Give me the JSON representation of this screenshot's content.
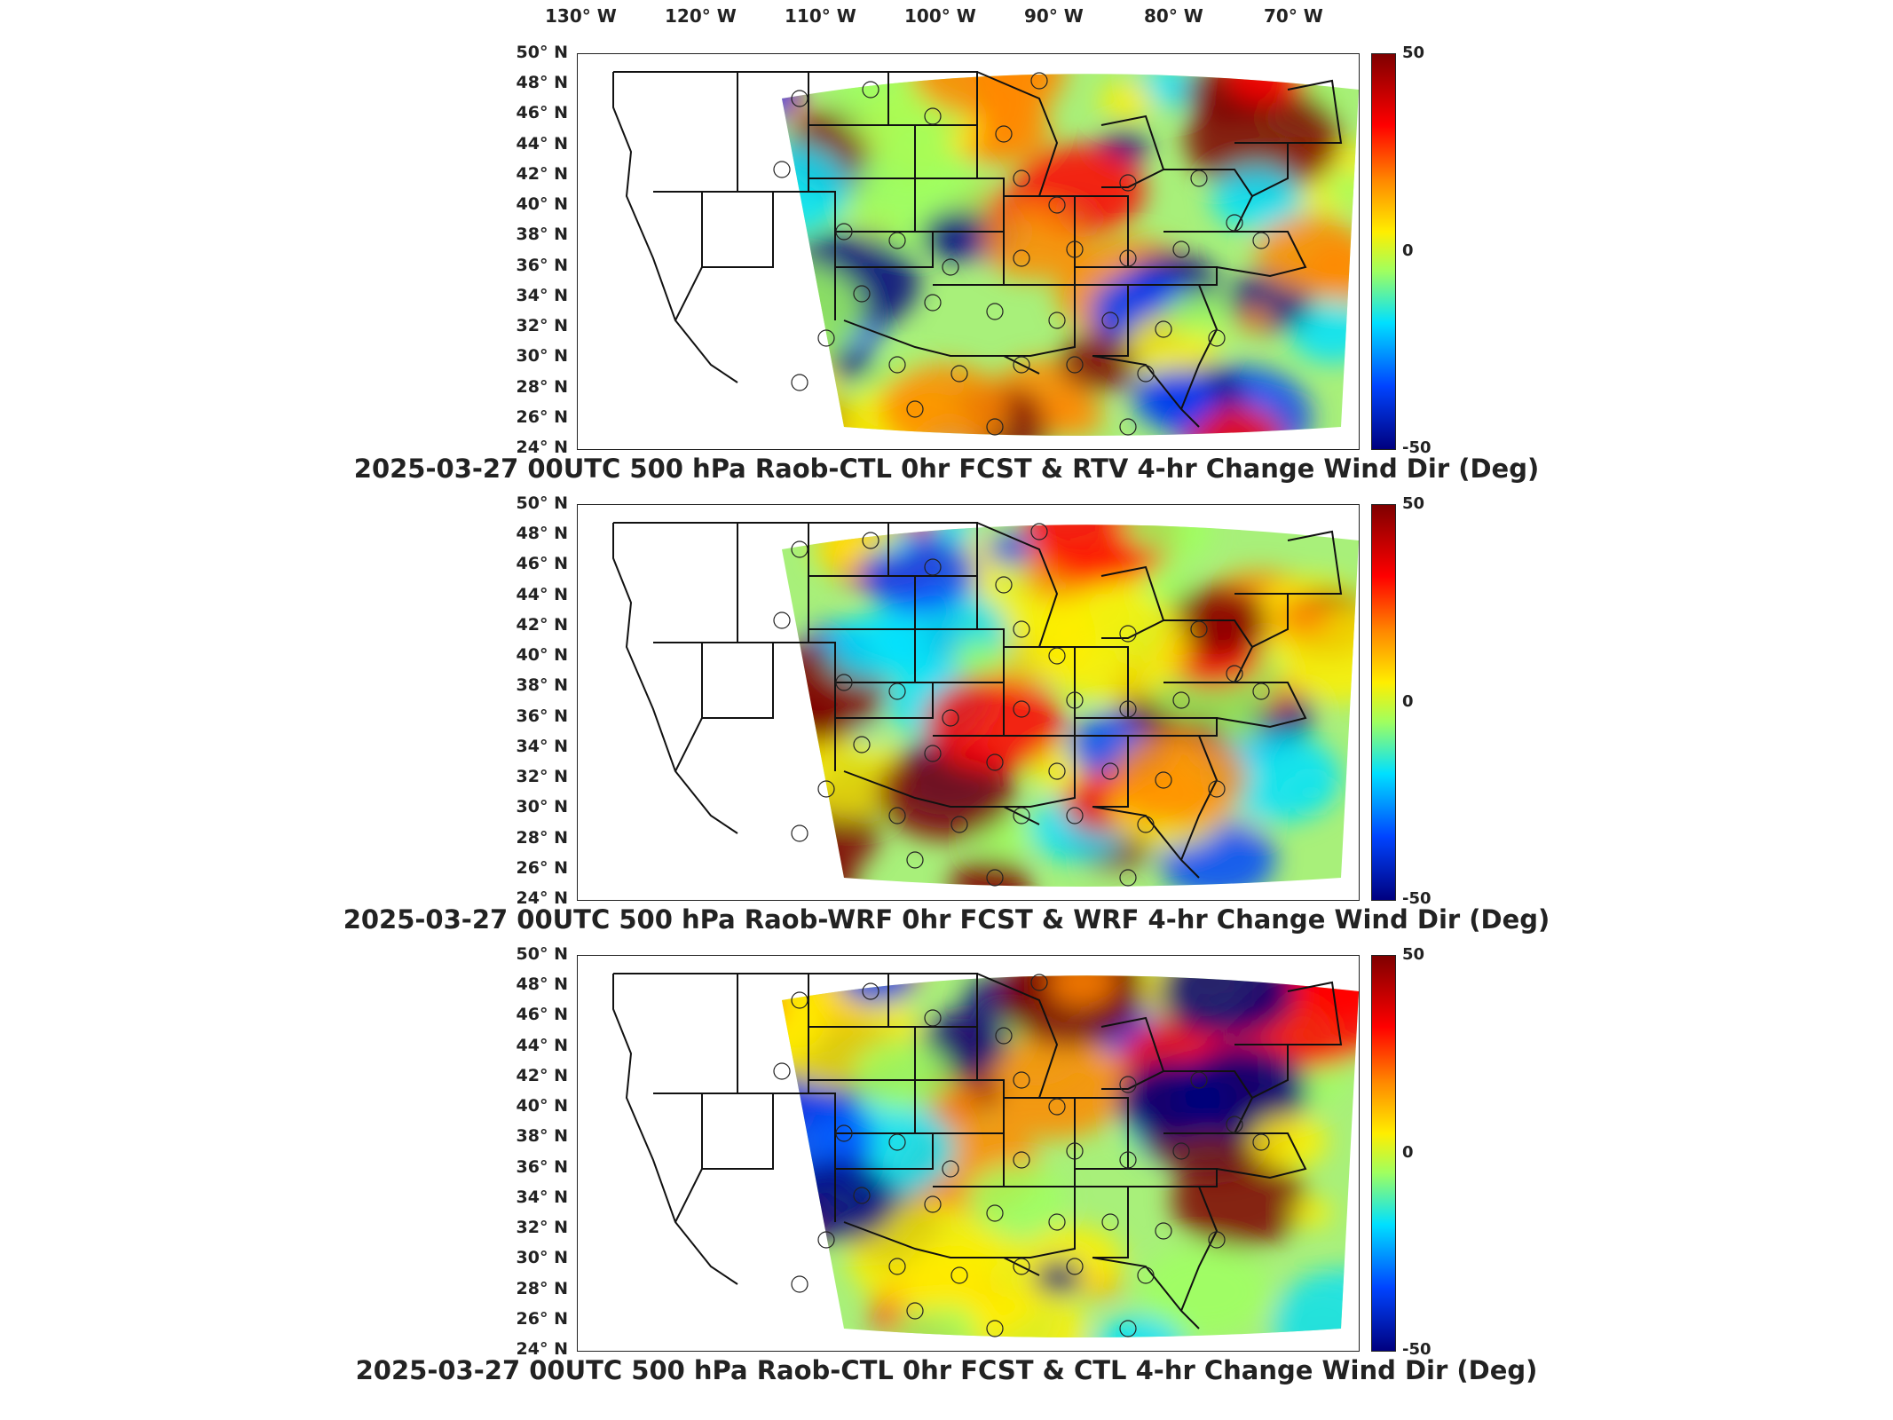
{
  "longitude_labels": [
    "130° W",
    "120° W",
    "110° W",
    "100° W",
    "90° W",
    "80° W",
    "70° W"
  ],
  "latitude_labels": [
    "50° N",
    "48° N",
    "46° N",
    "44° N",
    "42° N",
    "40° N",
    "38° N",
    "36° N",
    "34° N",
    "32° N",
    "30° N",
    "28° N",
    "26° N",
    "24° N"
  ],
  "colorbar": {
    "max_label": "50",
    "mid_label": "0",
    "min_label": "-50"
  },
  "colormap_colors": [
    "#7f0000",
    "#ff0000",
    "#ff8800",
    "#ffee00",
    "#9fff60",
    "#00e0ff",
    "#0044ff",
    "#00007f"
  ],
  "panels": [
    {
      "title": "2025-03-27 00UTC 500 hPa Raob-CTL 0hr FCST & RTV 4-hr Change Wind Dir (Deg)"
    },
    {
      "title": "2025-03-27 00UTC 500 hPa Raob-WRF 0hr FCST & WRF 4-hr Change Wind Dir (Deg)"
    },
    {
      "title": "2025-03-27 00UTC 500 hPa Raob-CTL 0hr FCST & CTL 4-hr Change Wind Dir (Deg)"
    }
  ],
  "chart_data": {
    "type": "heatmap",
    "variable": "4-hr Change Wind Dir (Deg)",
    "level": "500 hPa",
    "valid_time": "2025-03-27 00UTC",
    "projection": "lambert-conformal",
    "lon_range": [
      -130,
      -65
    ],
    "lat_range": [
      24,
      50
    ],
    "color_range": [
      -50,
      50
    ],
    "colorbar_ticks": [
      50,
      0,
      -50
    ],
    "legend_position": "right",
    "overlays": [
      "state boundaries",
      "coastlines",
      "raob station circles"
    ]
  }
}
